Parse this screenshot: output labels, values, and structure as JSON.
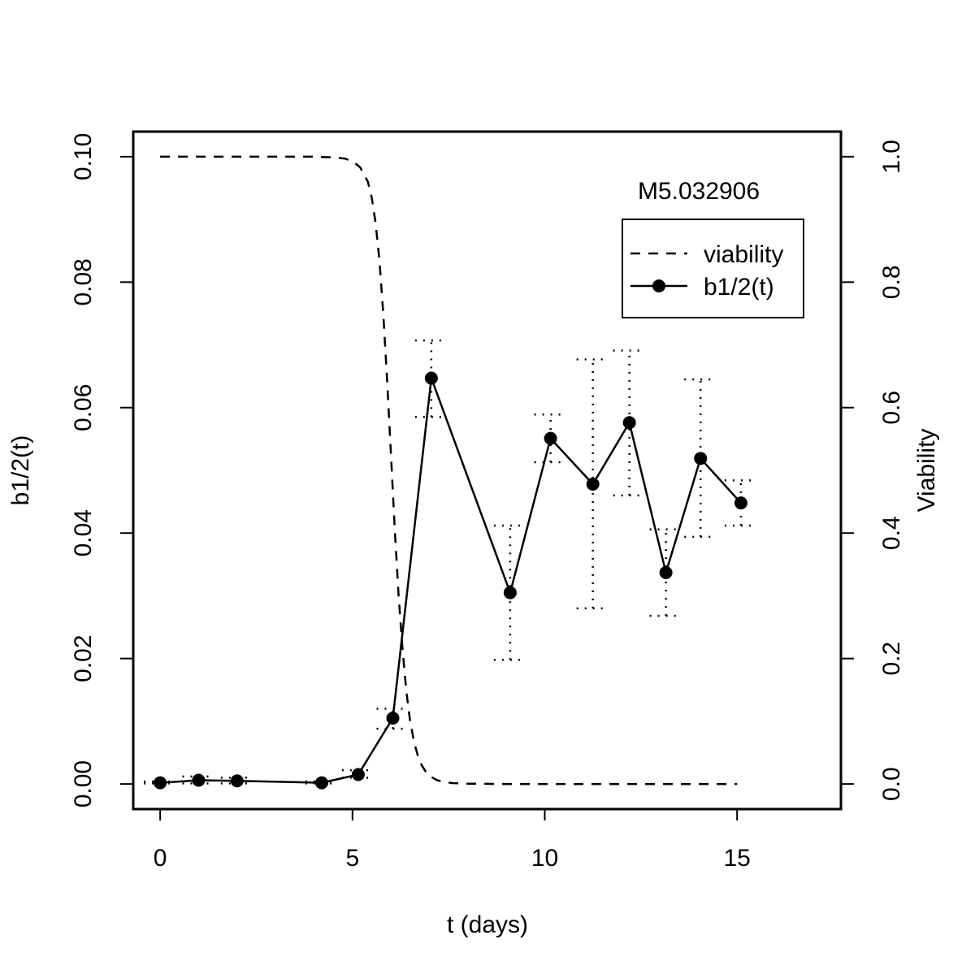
{
  "chart_data": {
    "type": "line",
    "title": "",
    "annotation": "M5.032906",
    "xlabel": "t (days)",
    "ylabel_left": "b1/2(t)",
    "ylabel_right": "Viability",
    "xlim": [
      -0.7,
      17.7
    ],
    "ylim_left": [
      -0.004,
      0.104
    ],
    "ylim_right": [
      -0.04,
      1.04
    ],
    "x_ticks": [
      0,
      5,
      10,
      15
    ],
    "x_tick_labels": [
      "0",
      "5",
      "10",
      "15"
    ],
    "y_left_ticks": [
      0.0,
      0.02,
      0.04,
      0.06,
      0.08,
      0.1
    ],
    "y_left_tick_labels": [
      "0.00",
      "0.02",
      "0.04",
      "0.06",
      "0.08",
      "0.10"
    ],
    "y_right_ticks": [
      0.0,
      0.2,
      0.4,
      0.6,
      0.8,
      1.0
    ],
    "y_right_tick_labels": [
      "0.0",
      "0.2",
      "0.4",
      "0.6",
      "0.8",
      "1.0"
    ],
    "grid": false,
    "legend_position": "top-right",
    "series": [
      {
        "name": "viability",
        "axis": "right",
        "style": "dashed",
        "x": [
          0,
          1,
          2,
          3,
          4,
          4.5,
          4.8,
          5.0,
          5.2,
          5.4,
          5.5,
          5.6,
          5.7,
          5.8,
          5.9,
          6.0,
          6.1,
          6.2,
          6.3,
          6.4,
          6.5,
          6.6,
          6.7,
          6.8,
          6.9,
          7.0,
          7.2,
          7.4,
          7.6,
          8.0,
          9.0,
          10,
          11,
          12,
          13,
          14,
          15
        ],
        "y": [
          1.0,
          1.0,
          1.0,
          1.0,
          1.0,
          0.999,
          0.997,
          0.993,
          0.983,
          0.96,
          0.935,
          0.895,
          0.835,
          0.75,
          0.645,
          0.525,
          0.405,
          0.3,
          0.215,
          0.148,
          0.1,
          0.067,
          0.045,
          0.03,
          0.02,
          0.013,
          0.006,
          0.003,
          0.0015,
          0.0005,
          0.0,
          0.0,
          0.0,
          0.0,
          0.0,
          0.0,
          0.0
        ]
      },
      {
        "name": "b1/2(t)",
        "axis": "left",
        "style": "solid-points",
        "x": [
          0,
          1.0,
          2.0,
          4.2,
          5.15,
          6.05,
          7.05,
          9.1,
          10.15,
          11.25,
          12.2,
          13.15,
          14.05,
          15.1
        ],
        "y": [
          0.0002,
          0.0006,
          0.0005,
          0.0002,
          0.0015,
          0.0105,
          0.0647,
          0.0305,
          0.0551,
          0.0478,
          0.0576,
          0.0337,
          0.0519,
          0.0448
        ],
        "err_low": [
          0.0001,
          0.0001,
          0.0001,
          0.0001,
          0.001,
          0.0088,
          0.0585,
          0.0198,
          0.0513,
          0.028,
          0.046,
          0.0268,
          0.0394,
          0.0412
        ],
        "err_high": [
          0.0004,
          0.0012,
          0.001,
          0.0004,
          0.0022,
          0.012,
          0.0707,
          0.0412,
          0.0589,
          0.0677,
          0.0691,
          0.0406,
          0.0645,
          0.0484
        ]
      }
    ]
  }
}
